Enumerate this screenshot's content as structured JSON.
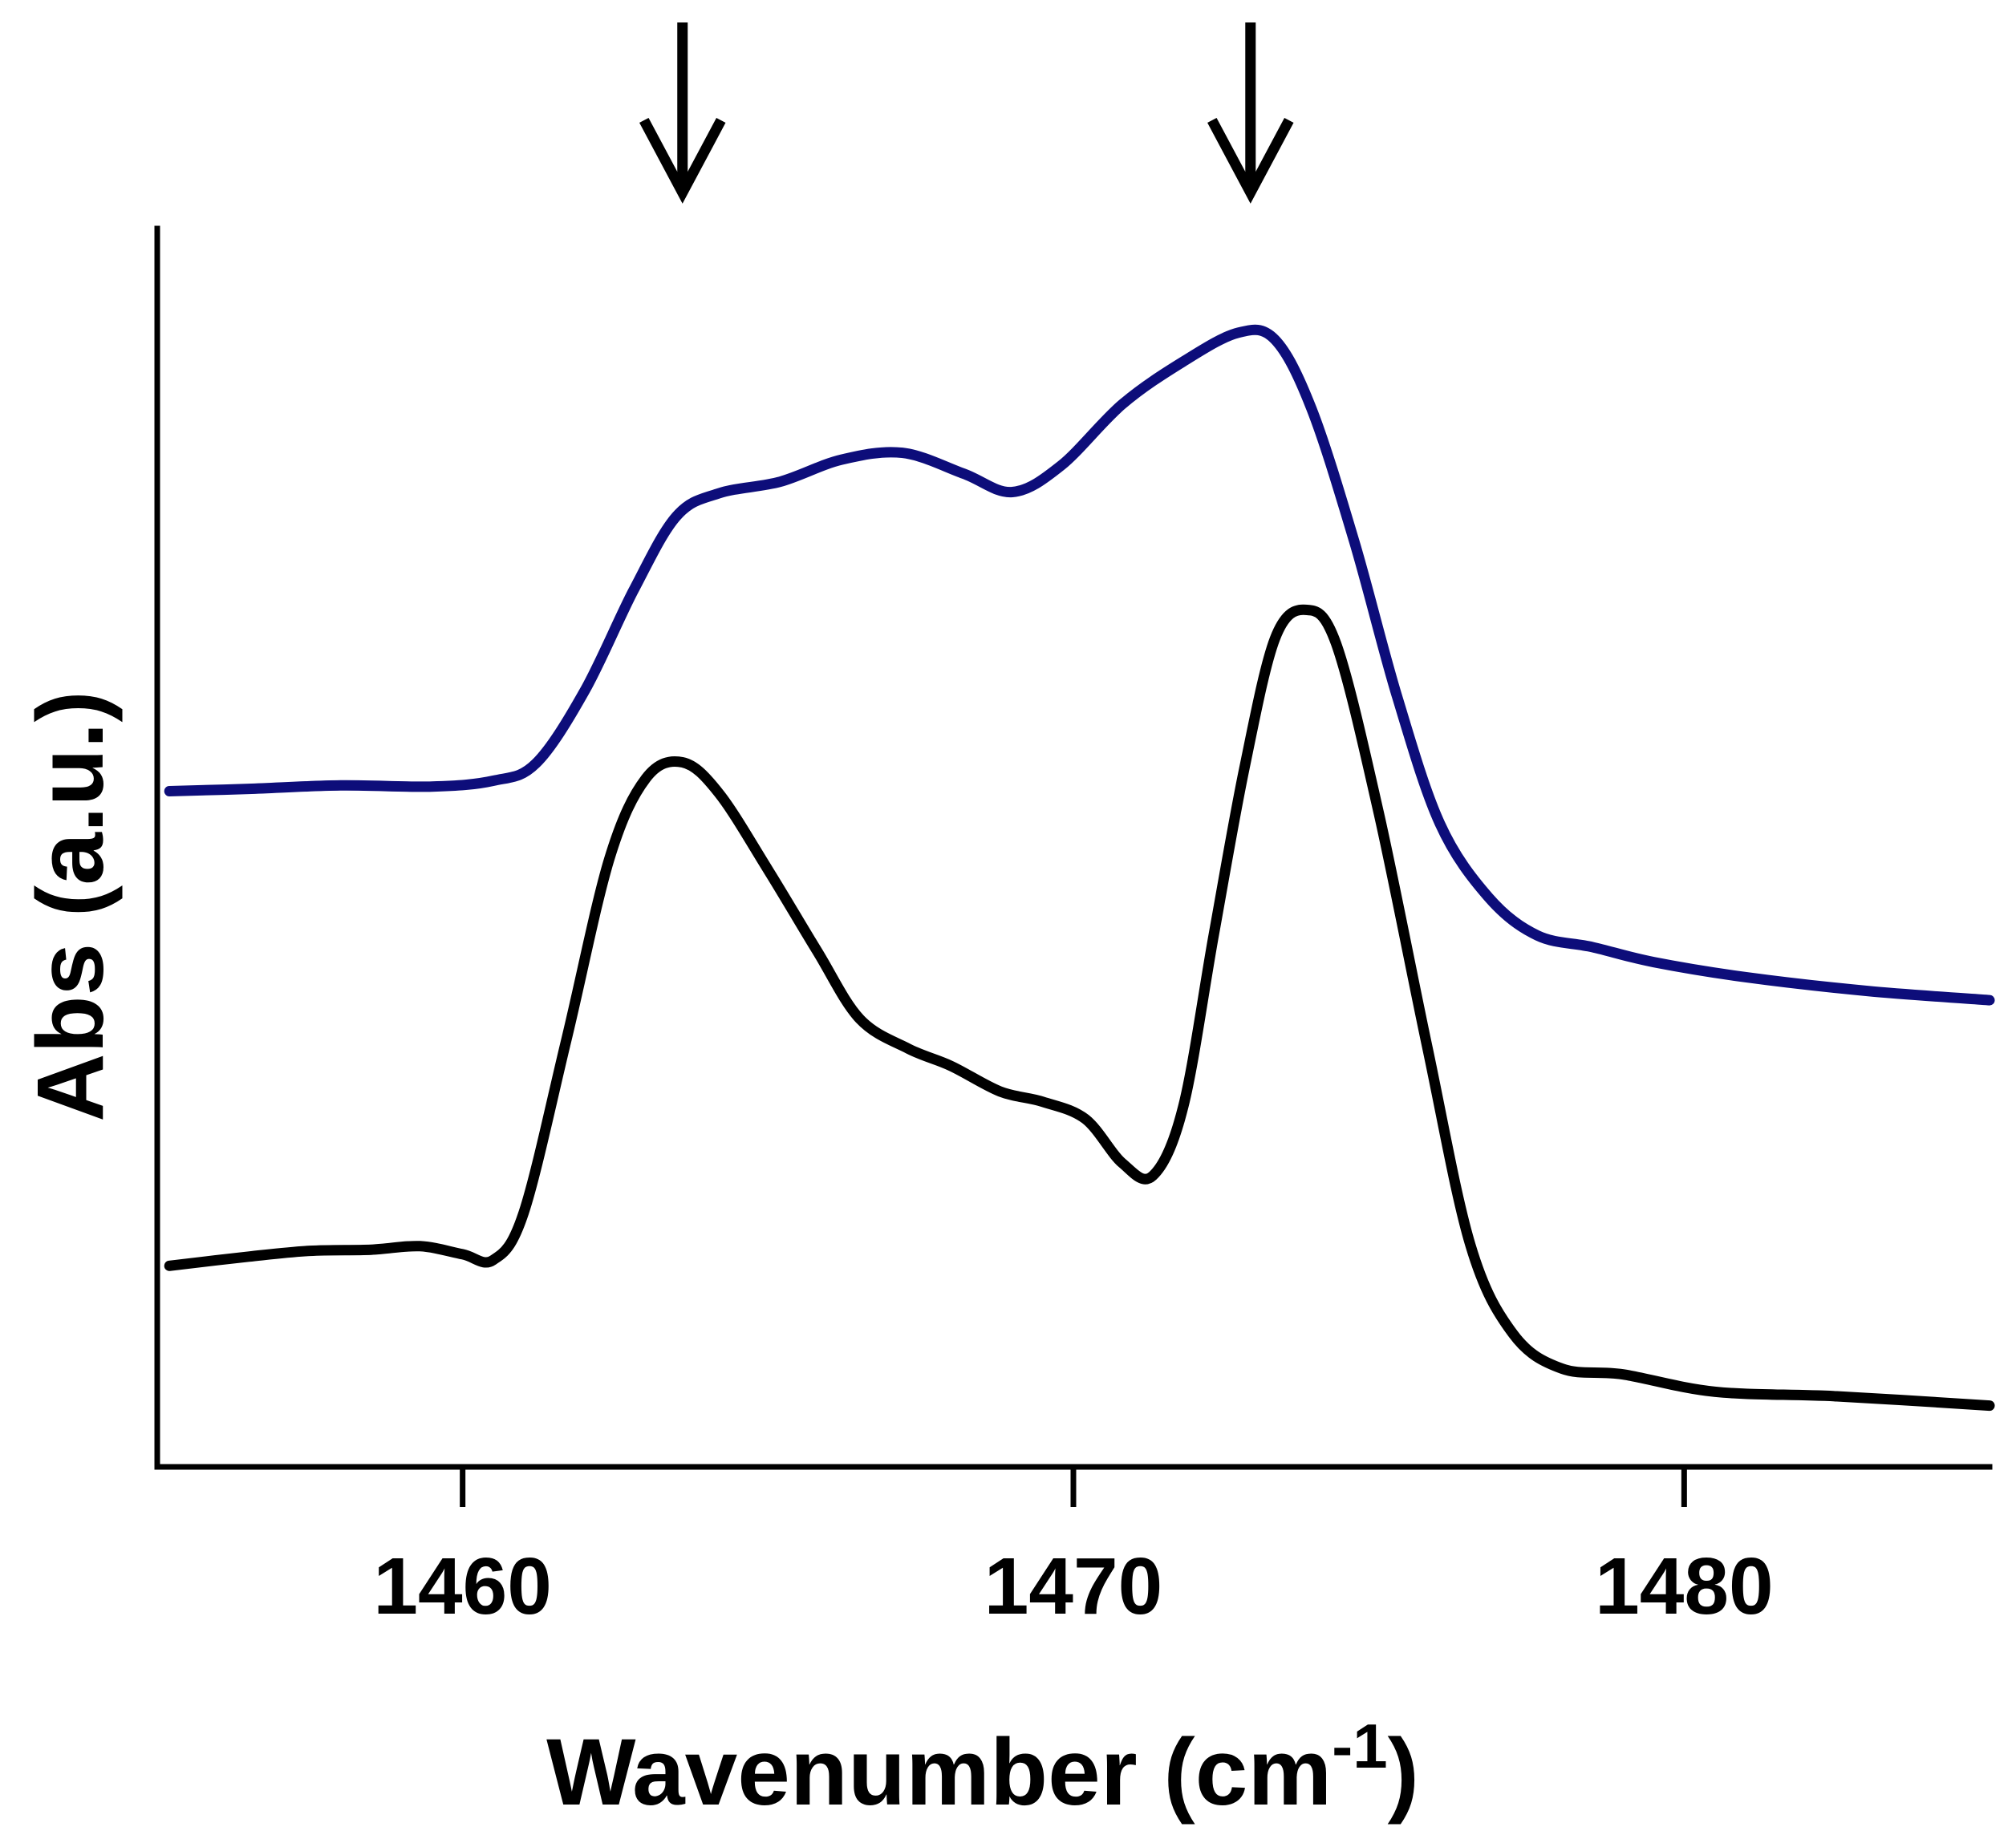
{
  "chart_data": {
    "type": "line",
    "title": "",
    "xlabel": "Wavenumber (cm",
    "xlabel_sup": "-1",
    "xlabel_close": ")",
    "ylabel": "Abs (a.u.)",
    "xlim": [
      1455,
      1485
    ],
    "ylim": [
      0,
      1
    ],
    "x_ticks": [
      1460,
      1470,
      1480
    ],
    "x_tick_labels": [
      "1460",
      "1470",
      "1480"
    ],
    "y_ticks": [],
    "grid": false,
    "legend": "none",
    "annotations": [
      {
        "type": "arrow-down",
        "x": 1463.6
      },
      {
        "type": "arrow-down",
        "x": 1472.9
      }
    ],
    "series": [
      {
        "name": "blue",
        "color": "#0d0d7a",
        "x": [
          1455.2,
          1456.5,
          1458.0,
          1459.5,
          1460.5,
          1461.2,
          1462.0,
          1462.8,
          1463.5,
          1464.2,
          1465.2,
          1466.2,
          1467.2,
          1468.2,
          1469.0,
          1469.8,
          1470.8,
          1471.8,
          1472.7,
          1473.3,
          1473.9,
          1474.6,
          1475.3,
          1476.0,
          1476.8,
          1477.6,
          1478.5,
          1479.5,
          1481.0,
          1483.0,
          1485.0
        ],
        "y": [
          0.558,
          0.56,
          0.563,
          0.562,
          0.567,
          0.582,
          0.645,
          0.732,
          0.796,
          0.816,
          0.826,
          0.845,
          0.851,
          0.833,
          0.817,
          0.84,
          0.893,
          0.93,
          0.955,
          0.949,
          0.889,
          0.774,
          0.64,
          0.53,
          0.466,
          0.433,
          0.423,
          0.41,
          0.397,
          0.385,
          0.377
        ]
      },
      {
        "name": "black",
        "color": "#000000",
        "x": [
          1455.2,
          1456.5,
          1457.5,
          1458.5,
          1459.3,
          1460.0,
          1460.5,
          1461.0,
          1461.7,
          1462.4,
          1463.0,
          1463.6,
          1464.2,
          1465.0,
          1465.8,
          1466.5,
          1467.3,
          1468.0,
          1468.8,
          1469.5,
          1470.2,
          1470.8,
          1471.3,
          1471.8,
          1472.3,
          1472.8,
          1473.3,
          1473.8,
          1474.3,
          1475.0,
          1475.8,
          1476.5,
          1477.2,
          1478.0,
          1479.0,
          1480.5,
          1482.5,
          1485.0
        ],
        "y": [
          0.147,
          0.155,
          0.16,
          0.161,
          0.164,
          0.157,
          0.152,
          0.193,
          0.343,
          0.499,
          0.569,
          0.583,
          0.556,
          0.49,
          0.42,
          0.361,
          0.335,
          0.32,
          0.298,
          0.289,
          0.274,
          0.236,
          0.225,
          0.285,
          0.434,
          0.578,
          0.69,
          0.715,
          0.686,
          0.539,
          0.335,
          0.165,
          0.088,
          0.058,
          0.053,
          0.038,
          0.034,
          0.026
        ]
      }
    ]
  }
}
